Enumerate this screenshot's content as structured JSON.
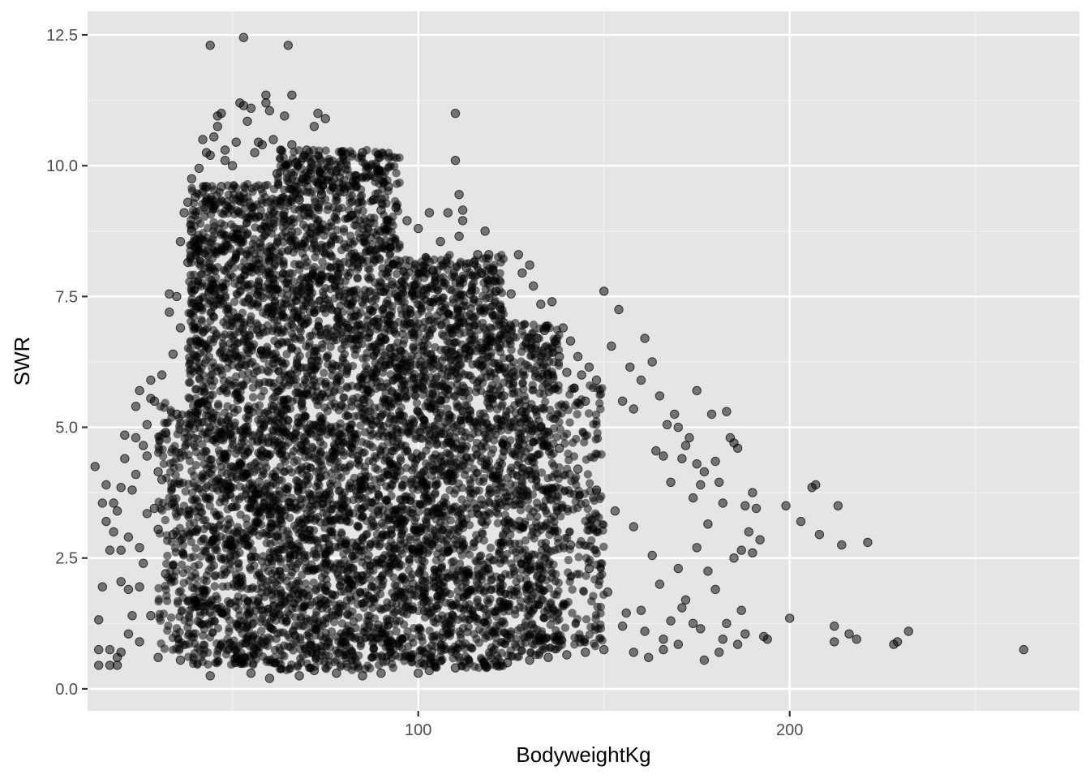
{
  "chart_data": {
    "type": "scatter",
    "title": "",
    "xlabel": "BodyweightKg",
    "ylabel": "SWR",
    "xlim": [
      11,
      278
    ],
    "ylim": [
      -0.42,
      12.95
    ],
    "x_ticks": [
      {
        "value": 100,
        "label": "100"
      },
      {
        "value": 200,
        "label": "200"
      }
    ],
    "x_minor_gridlines": [
      50,
      150,
      250
    ],
    "y_ticks": [
      {
        "value": 0.0,
        "label": "0.0"
      },
      {
        "value": 2.5,
        "label": "2.5"
      },
      {
        "value": 5.0,
        "label": "5.0"
      },
      {
        "value": 7.5,
        "label": "7.5"
      },
      {
        "value": 10.0,
        "label": "10.0"
      },
      {
        "value": 12.5,
        "label": "12.5"
      }
    ],
    "y_minor_gridlines": [
      1.25,
      3.75,
      6.25,
      8.75,
      11.25
    ],
    "grid": true,
    "legend": "none",
    "point_color": "#000000",
    "point_opacity": 0.5,
    "panel_background": "#e5e5e5",
    "points": [
      [
        13,
        4.25
      ],
      [
        14,
        1.32
      ],
      [
        14,
        0.45
      ],
      [
        15,
        1.95
      ],
      [
        15,
        3.55
      ],
      [
        16,
        3.9
      ],
      [
        16,
        3.2
      ],
      [
        17,
        2.65
      ],
      [
        17,
        0.45
      ],
      [
        17,
        0.75
      ],
      [
        18,
        3.55
      ],
      [
        18,
        3.0
      ],
      [
        19,
        3.4
      ],
      [
        19,
        0.45
      ],
      [
        20,
        3.85
      ],
      [
        20,
        2.65
      ],
      [
        20,
        0.7
      ],
      [
        21,
        4.85
      ],
      [
        21,
        4.4
      ],
      [
        22,
        2.9
      ],
      [
        22,
        1.9
      ],
      [
        23,
        3.8
      ],
      [
        23,
        1.4
      ],
      [
        24,
        5.4
      ],
      [
        24,
        4.1
      ],
      [
        25,
        5.7
      ],
      [
        25,
        2.7
      ],
      [
        25,
        1.95
      ],
      [
        26,
        4.65
      ],
      [
        27,
        5.05
      ],
      [
        27,
        3.35
      ],
      [
        28,
        5.55
      ],
      [
        28,
        5.9
      ],
      [
        29,
        5.5
      ],
      [
        30,
        4.15
      ],
      [
        30,
        3.05
      ],
      [
        31,
        6.0
      ],
      [
        32,
        4.9
      ],
      [
        33,
        7.55
      ],
      [
        33,
        7.2
      ],
      [
        34,
        6.4
      ],
      [
        35,
        7.5
      ],
      [
        35,
        5.25
      ],
      [
        36,
        8.55
      ],
      [
        36,
        6.9
      ],
      [
        37,
        9.1
      ],
      [
        38,
        9.3
      ],
      [
        38,
        8.15
      ],
      [
        39,
        9.75
      ],
      [
        39,
        8.75
      ],
      [
        40,
        9.4
      ],
      [
        40,
        8.45
      ],
      [
        41,
        9.95
      ],
      [
        41,
        7.3
      ],
      [
        42,
        10.5
      ],
      [
        43,
        10.25
      ],
      [
        43,
        9.6
      ],
      [
        44,
        12.3
      ],
      [
        44,
        10.2
      ],
      [
        45,
        10.55
      ],
      [
        46,
        10.75
      ],
      [
        46,
        10.95
      ],
      [
        47,
        11.0
      ],
      [
        47,
        9.6
      ],
      [
        48,
        10.3
      ],
      [
        48,
        10.1
      ],
      [
        50,
        10.0
      ],
      [
        51,
        10.45
      ],
      [
        52,
        11.2
      ],
      [
        53,
        12.45
      ],
      [
        53,
        11.15
      ],
      [
        54,
        10.85
      ],
      [
        55,
        11.1
      ],
      [
        56,
        10.25
      ],
      [
        57,
        10.45
      ],
      [
        58,
        10.4
      ],
      [
        59,
        11.35
      ],
      [
        59,
        11.2
      ],
      [
        60,
        11.05
      ],
      [
        61,
        10.5
      ],
      [
        62,
        9.85
      ],
      [
        63,
        10.3
      ],
      [
        64,
        10.95
      ],
      [
        65,
        12.3
      ],
      [
        66,
        11.35
      ],
      [
        66,
        10.4
      ],
      [
        67,
        10.05
      ],
      [
        68,
        9.35
      ],
      [
        69,
        10.15
      ],
      [
        70,
        10.3
      ],
      [
        71,
        9.85
      ],
      [
        72,
        10.75
      ],
      [
        73,
        11.0
      ],
      [
        74,
        9.45
      ],
      [
        75,
        10.9
      ],
      [
        76,
        9.8
      ],
      [
        78,
        9.9
      ],
      [
        80,
        9.5
      ],
      [
        82,
        9.05
      ],
      [
        85,
        10.25
      ],
      [
        88,
        9.35
      ],
      [
        90,
        9.15
      ],
      [
        92,
        9.6
      ],
      [
        94,
        9.2
      ],
      [
        97,
        8.95
      ],
      [
        100,
        8.8
      ],
      [
        103,
        9.1
      ],
      [
        104,
        8.0
      ],
      [
        106,
        8.55
      ],
      [
        108,
        9.1
      ],
      [
        110,
        11.0
      ],
      [
        110,
        10.1
      ],
      [
        111,
        9.45
      ],
      [
        111,
        8.65
      ],
      [
        112,
        8.95
      ],
      [
        112,
        9.15
      ],
      [
        113,
        8.05
      ],
      [
        114,
        7.55
      ],
      [
        115,
        8.15
      ],
      [
        116,
        8.3
      ],
      [
        117,
        7.95
      ],
      [
        118,
        8.75
      ],
      [
        119,
        8.3
      ],
      [
        120,
        8.0
      ],
      [
        121,
        7.6
      ],
      [
        122,
        7.3
      ],
      [
        123,
        7.0
      ],
      [
        125,
        7.55
      ],
      [
        127,
        8.3
      ],
      [
        128,
        7.95
      ],
      [
        130,
        8.1
      ],
      [
        131,
        7.7
      ],
      [
        132,
        6.7
      ],
      [
        133,
        7.35
      ],
      [
        134,
        6.85
      ],
      [
        135,
        6.0
      ],
      [
        136,
        7.4
      ],
      [
        137,
        6.65
      ],
      [
        138,
        6.35
      ],
      [
        139,
        6.9
      ],
      [
        140,
        6.05
      ],
      [
        141,
        6.65
      ],
      [
        142,
        5.75
      ],
      [
        143,
        6.35
      ],
      [
        144,
        6.0
      ],
      [
        145,
        5.5
      ],
      [
        146,
        6.15
      ],
      [
        148,
        5.9
      ],
      [
        150,
        7.6
      ],
      [
        152,
        6.55
      ],
      [
        154,
        7.25
      ],
      [
        155,
        5.5
      ],
      [
        157,
        6.15
      ],
      [
        158,
        5.35
      ],
      [
        160,
        5.9
      ],
      [
        161,
        6.7
      ],
      [
        163,
        6.25
      ],
      [
        164,
        4.55
      ],
      [
        165,
        5.6
      ],
      [
        166,
        4.45
      ],
      [
        167,
        5.05
      ],
      [
        168,
        3.95
      ],
      [
        169,
        5.25
      ],
      [
        170,
        5.0
      ],
      [
        171,
        4.4
      ],
      [
        172,
        4.65
      ],
      [
        173,
        4.8
      ],
      [
        174,
        3.65
      ],
      [
        175,
        5.7
      ],
      [
        175,
        4.3
      ],
      [
        176,
        3.9
      ],
      [
        177,
        4.15
      ],
      [
        178,
        3.15
      ],
      [
        179,
        5.25
      ],
      [
        180,
        4.35
      ],
      [
        181,
        3.95
      ],
      [
        182,
        3.55
      ],
      [
        183,
        5.3
      ],
      [
        184,
        4.8
      ],
      [
        185,
        4.7
      ],
      [
        185,
        2.5
      ],
      [
        186,
        4.6
      ],
      [
        187,
        2.65
      ],
      [
        187,
        1.5
      ],
      [
        188,
        3.5
      ],
      [
        189,
        3.0
      ],
      [
        190,
        3.75
      ],
      [
        190,
        2.6
      ],
      [
        191,
        3.45
      ],
      [
        192,
        2.85
      ],
      [
        193,
        1.0
      ],
      [
        194,
        0.95
      ],
      [
        199,
        3.5
      ],
      [
        200,
        1.35
      ],
      [
        203,
        3.2
      ],
      [
        206,
        3.85
      ],
      [
        207,
        3.9
      ],
      [
        208,
        2.95
      ],
      [
        212,
        0.9
      ],
      [
        212,
        1.2
      ],
      [
        213,
        3.5
      ],
      [
        214,
        2.75
      ],
      [
        216,
        1.05
      ],
      [
        218,
        0.95
      ],
      [
        221,
        2.8
      ],
      [
        228,
        0.85
      ],
      [
        229,
        0.9
      ],
      [
        232,
        1.1
      ],
      [
        263,
        0.75
      ],
      [
        55,
        0.3
      ],
      [
        60,
        0.2
      ],
      [
        68,
        0.25
      ],
      [
        72,
        0.35
      ],
      [
        78,
        0.3
      ],
      [
        85,
        0.25
      ],
      [
        90,
        0.3
      ],
      [
        100,
        0.3
      ],
      [
        103,
        0.35
      ],
      [
        110,
        0.4
      ],
      [
        118,
        0.45
      ],
      [
        124,
        0.5
      ],
      [
        130,
        0.55
      ],
      [
        135,
        0.6
      ],
      [
        140,
        0.65
      ],
      [
        145,
        0.7
      ],
      [
        150,
        0.75
      ],
      [
        158,
        0.7
      ],
      [
        162,
        0.6
      ],
      [
        166,
        0.75
      ],
      [
        170,
        0.85
      ],
      [
        177,
        0.55
      ],
      [
        181,
        0.7
      ],
      [
        186,
        0.85
      ],
      [
        44,
        0.25
      ],
      [
        36,
        0.55
      ],
      [
        30,
        0.6
      ],
      [
        25,
        0.9
      ],
      [
        22,
        1.05
      ],
      [
        19,
        0.6
      ],
      [
        14,
        0.75
      ],
      [
        28,
        1.4
      ],
      [
        32,
        2.2
      ],
      [
        20,
        2.05
      ],
      [
        26,
        2.4
      ],
      [
        34,
        2.95
      ],
      [
        29,
        3.45
      ],
      [
        31,
        4.0
      ],
      [
        27,
        4.45
      ],
      [
        24,
        4.8
      ],
      [
        155,
        1.2
      ],
      [
        160,
        1.5
      ],
      [
        165,
        2.0
      ],
      [
        170,
        2.3
      ],
      [
        175,
        2.7
      ],
      [
        180,
        1.9
      ],
      [
        183,
        1.25
      ],
      [
        188,
        1.05
      ],
      [
        172,
        1.7
      ],
      [
        168,
        1.3
      ],
      [
        163,
        2.55
      ],
      [
        158,
        3.1
      ],
      [
        153,
        3.4
      ],
      [
        148,
        3.8
      ],
      [
        143,
        4.2
      ],
      [
        138,
        4.6
      ],
      [
        133,
        5.0
      ],
      [
        128,
        5.3
      ],
      [
        123,
        5.6
      ],
      [
        178,
        2.25
      ],
      [
        146,
        2.3
      ],
      [
        141,
        2.75
      ],
      [
        151,
        1.85
      ],
      [
        156,
        1.45
      ],
      [
        161,
        1.1
      ],
      [
        166,
        0.95
      ],
      [
        171,
        1.55
      ],
      [
        176,
        1.15
      ],
      [
        182,
        0.95
      ],
      [
        174,
        1.25
      ]
    ],
    "dense_regions": [
      {
        "x": [
          38,
          62
        ],
        "y": [
          0.45,
          9.65
        ],
        "density": 1.0
      },
      {
        "x": [
          62,
          95
        ],
        "y": [
          0.35,
          10.3
        ],
        "density": 1.0
      },
      {
        "x": [
          95,
          123
        ],
        "y": [
          0.4,
          8.3
        ],
        "density": 1.0
      },
      {
        "x": [
          123,
          138
        ],
        "y": [
          0.6,
          7.0
        ],
        "density": 0.9
      },
      {
        "x": [
          30,
          38
        ],
        "y": [
          0.7,
          5.5
        ],
        "density": 0.55
      },
      {
        "x": [
          138,
          150
        ],
        "y": [
          0.8,
          5.8
        ],
        "density": 0.45
      }
    ]
  }
}
